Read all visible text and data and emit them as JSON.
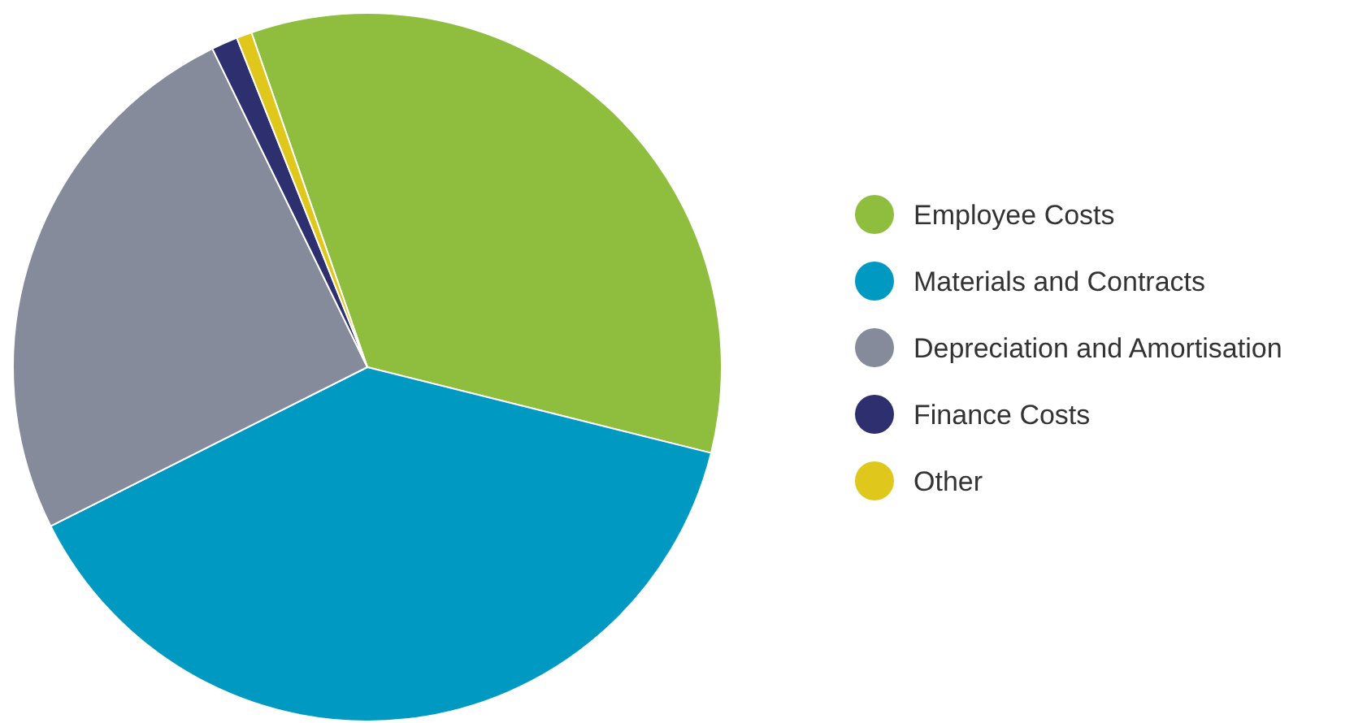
{
  "chart_data": {
    "type": "pie",
    "categories": [
      "Employee Costs",
      "Materials and Contracts",
      "Depreciation and Amortisation",
      "Finance Costs",
      "Other"
    ],
    "values": [
      34.2,
      38.7,
      25.2,
      1.2,
      0.7
    ],
    "colors": [
      "#8fbe3f",
      "#0099c2",
      "#868b9c",
      "#2e2f6e",
      "#e0c71b"
    ],
    "legend": "right"
  }
}
